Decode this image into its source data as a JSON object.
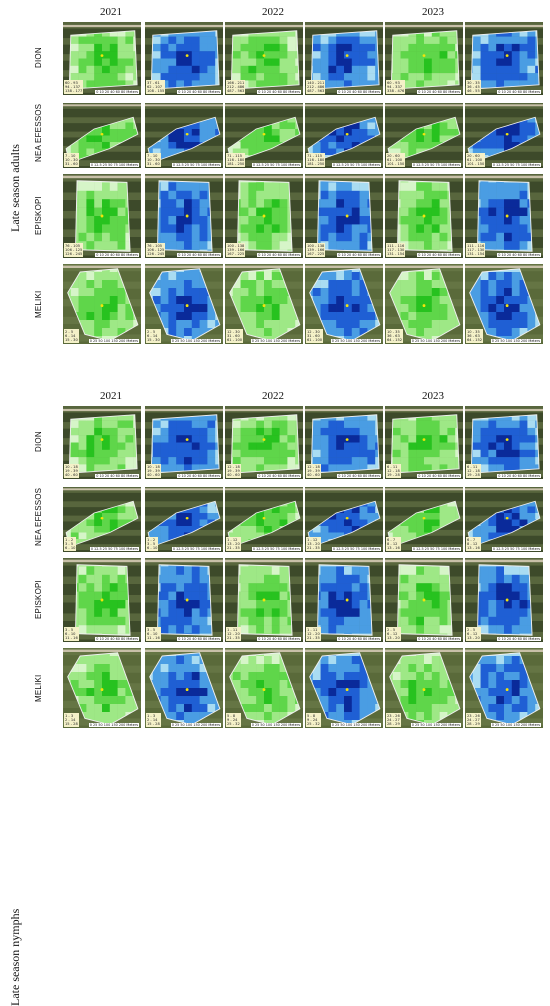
{
  "groups": [
    {
      "label": "Late season adults",
      "legend": [
        [
          [
            "60 - 93",
            "94 - 137",
            "138 - 177"
          ],
          [
            "37 - 61",
            "62 - 107",
            "108 - 155"
          ],
          [
            "166 - 211",
            "212 - 486",
            "487 - 563"
          ],
          [
            "140 - 211",
            "212 - 486",
            "487 - 563"
          ],
          [
            "60 - 93",
            "94 - 337",
            "338 - 476"
          ],
          [
            "30 - 35",
            "36 - 45",
            "46 - 55"
          ]
        ],
        [
          [
            "7 - 10",
            "10 - 30",
            "31 - 60"
          ],
          [
            "7 - 10",
            "10 - 30",
            "31 - 60"
          ],
          [
            "71 - 115",
            "116 - 180",
            "181 - 250"
          ],
          [
            "71 - 115",
            "116 - 180",
            "181 - 250"
          ],
          [
            "20 - 60",
            "61 - 100",
            "101 - 150"
          ],
          [
            "20 - 60",
            "61 - 100",
            "101 - 150"
          ]
        ],
        [
          [
            "76 - 105",
            "106 - 125",
            "126 - 245"
          ],
          [
            "76 - 105",
            "106 - 125",
            "126 - 245"
          ],
          [
            "100 - 138",
            "139 - 166",
            "167 - 225"
          ],
          [
            "100 - 138",
            "139 - 166",
            "167 - 225"
          ],
          [
            "111 - 116",
            "117 - 130",
            "131 - 154"
          ],
          [
            "111 - 116",
            "117 - 130",
            "131 - 154"
          ]
        ],
        [
          [
            "2 - 5",
            "6 - 14",
            "15 - 30"
          ],
          [
            "2 - 5",
            "6 - 14",
            "15 - 30"
          ],
          [
            "12 - 30",
            "31 - 60",
            "61 - 100"
          ],
          [
            "12 - 30",
            "31 - 60",
            "61 - 100"
          ],
          [
            "10 - 35",
            "36 - 63",
            "64 - 152"
          ],
          [
            "10 - 35",
            "36 - 63",
            "64 - 152"
          ]
        ]
      ]
    },
    {
      "label": "Late season nymphs",
      "legend": [
        [
          [
            "10 - 18",
            "19 - 39",
            "40 - 60"
          ],
          [
            "10 - 18",
            "19 - 39",
            "40 - 60"
          ],
          [
            "12 - 18",
            "19 - 39",
            "40 - 60"
          ],
          [
            "12 - 18",
            "19 - 39",
            "40 - 60"
          ],
          [
            "6 - 11",
            "12 - 18",
            "19 - 28"
          ],
          [
            "6 - 11",
            "12 - 18",
            "19 - 28"
          ]
        ],
        [
          [
            "1 - 2",
            "3 - 5",
            "6 - 10"
          ],
          [
            "1 - 2",
            "3 - 5",
            "6 - 10"
          ],
          [
            "1 - 12",
            "13 - 20",
            "21 - 35"
          ],
          [
            "1 - 12",
            "13 - 20",
            "21 - 35"
          ],
          [
            "6 - 7",
            "8 - 12",
            "13 - 16"
          ],
          [
            "6 - 7",
            "8 - 12",
            "13 - 16"
          ]
        ],
        [
          [
            "3 - 5",
            "6 - 10",
            "11 - 16"
          ],
          [
            "3 - 5",
            "6 - 10",
            "11 - 16"
          ],
          [
            "1 - 11",
            "12 - 20",
            "21 - 35"
          ],
          [
            "1 - 11",
            "12 - 20",
            "21 - 35"
          ],
          [
            "2 - 5",
            "6 - 12",
            "13 - 20"
          ],
          [
            "2 - 5",
            "6 - 12",
            "13 - 20"
          ]
        ],
        [
          [
            "1 - 3",
            "2 - 14",
            "15 - 28"
          ],
          [
            "1 - 3",
            "2 - 14",
            "15 - 28"
          ],
          [
            "5 - 8",
            "9 - 24",
            "25 - 32"
          ],
          [
            "5 - 8",
            "9 - 24",
            "25 - 32"
          ],
          [
            "23 - 26",
            "24 - 27",
            "28 - 29"
          ],
          [
            "23 - 26",
            "24 - 27",
            "28 - 29"
          ]
        ]
      ]
    }
  ],
  "years": [
    "2021",
    "2022",
    "2023"
  ],
  "sites": [
    "DION",
    "NEA EFESSOS",
    "EPISKOPI",
    "MELIKI"
  ],
  "scale_text": [
    "0 10 20 40 60 80",
    "0 12.5 25 50 75 100",
    "0 10 20 40 60 80",
    "0 25 50 100 150 200"
  ],
  "scale_unit": "Meters",
  "colors": {
    "green_ramp": [
      "#d6f5c8",
      "#9ee886",
      "#5fd64a",
      "#27c21f"
    ],
    "blue_ramp": [
      "#a9dcf2",
      "#4a9de3",
      "#1f5fd4",
      "#0a2a9a"
    ],
    "soil": "#3d4a2a",
    "field": "#6f7d4d",
    "road": "#c8c0a8",
    "trap": "#f2e40a"
  }
}
